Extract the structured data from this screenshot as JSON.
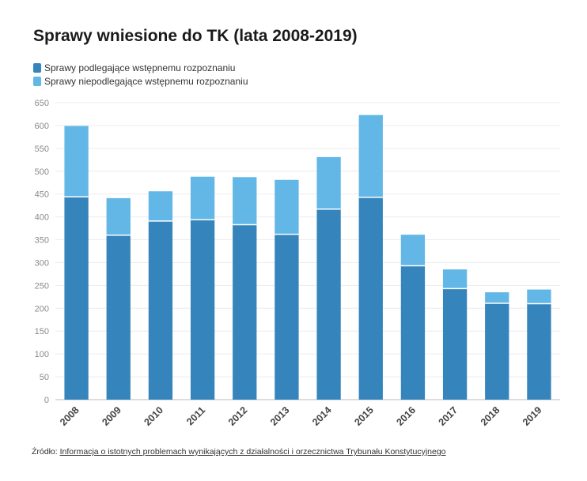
{
  "title": "Sprawy wniesione do TK (lata 2008-2019)",
  "legend": {
    "items": [
      {
        "label": "Sprawy podlegające wstępnemu rozpoznaniu",
        "color": "#3684bc"
      },
      {
        "label": "Sprawy niepodlegające wstępnemu rozpoznaniu",
        "color": "#62b7e6"
      }
    ]
  },
  "source": {
    "prefix": "Źródło:",
    "link_text": "Informacja o istotnych problemach wynikających z działalności i orzecznictwa Trybunału Konstytucyjnego"
  },
  "chart_data": {
    "type": "bar",
    "stacked": true,
    "title": "Sprawy wniesione do TK (lata 2008-2019)",
    "categories": [
      "2008",
      "2009",
      "2010",
      "2011",
      "2012",
      "2013",
      "2014",
      "2015",
      "2016",
      "2017",
      "2018",
      "2019"
    ],
    "series": [
      {
        "name": "Sprawy podlegające wstępnemu rozpoznaniu",
        "color": "#3684bc",
        "values": [
          444,
          360,
          391,
          394,
          383,
          362,
          417,
          443,
          293,
          243,
          211,
          210
        ]
      },
      {
        "name": "Sprawy niepodlegające wstępnemu rozpoznaniu",
        "color": "#62b7e6",
        "values": [
          155,
          81,
          65,
          94,
          104,
          119,
          114,
          180,
          68,
          42,
          24,
          31
        ]
      }
    ],
    "ylim": [
      0,
      650
    ],
    "yticks": [
      0,
      50,
      100,
      150,
      200,
      250,
      300,
      350,
      400,
      450,
      500,
      550,
      600,
      650
    ],
    "grid": true,
    "legend_position": "top-left"
  }
}
